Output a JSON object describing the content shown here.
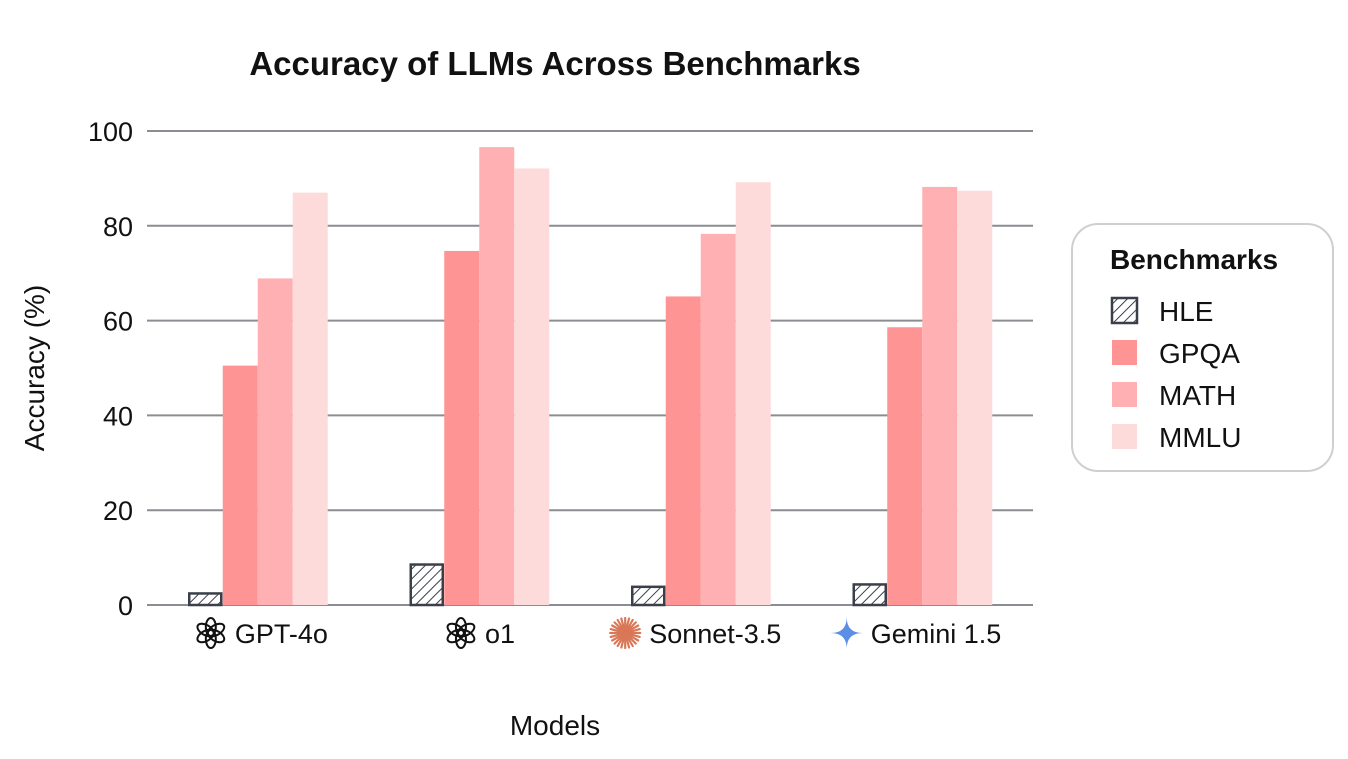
{
  "chart_data": {
    "type": "bar",
    "title": "Accuracy of LLMs Across Benchmarks",
    "xlabel": "Models",
    "ylabel": "Accuracy (%)",
    "ylim": [
      0,
      100
    ],
    "yticks": [
      0,
      20,
      40,
      60,
      80,
      100
    ],
    "grid": true,
    "categories": [
      "GPT-4o",
      "o1",
      "Sonnet-3.5",
      "Gemini 1.5"
    ],
    "category_icons": [
      "openai-logo-icon",
      "openai-logo-icon",
      "anthropic-star-icon",
      "gemini-sparkle-icon"
    ],
    "series": [
      {
        "name": "HLE",
        "values": [
          2.7,
          8.8,
          4.1,
          4.6
        ],
        "color": "#ffffff",
        "stroke": "#3a3f4a",
        "pattern": "hatch"
      },
      {
        "name": "GPQA",
        "values": [
          50.5,
          74.7,
          65.1,
          58.6
        ],
        "color": "#ff9494"
      },
      {
        "name": "MATH",
        "values": [
          68.9,
          96.6,
          78.3,
          88.2
        ],
        "color": "#ffb0b2"
      },
      {
        "name": "MMLU",
        "values": [
          87.0,
          92.1,
          89.2,
          87.4
        ],
        "color": "#fddbdb"
      }
    ],
    "legend": {
      "title": "Benchmarks",
      "position": "right"
    }
  }
}
